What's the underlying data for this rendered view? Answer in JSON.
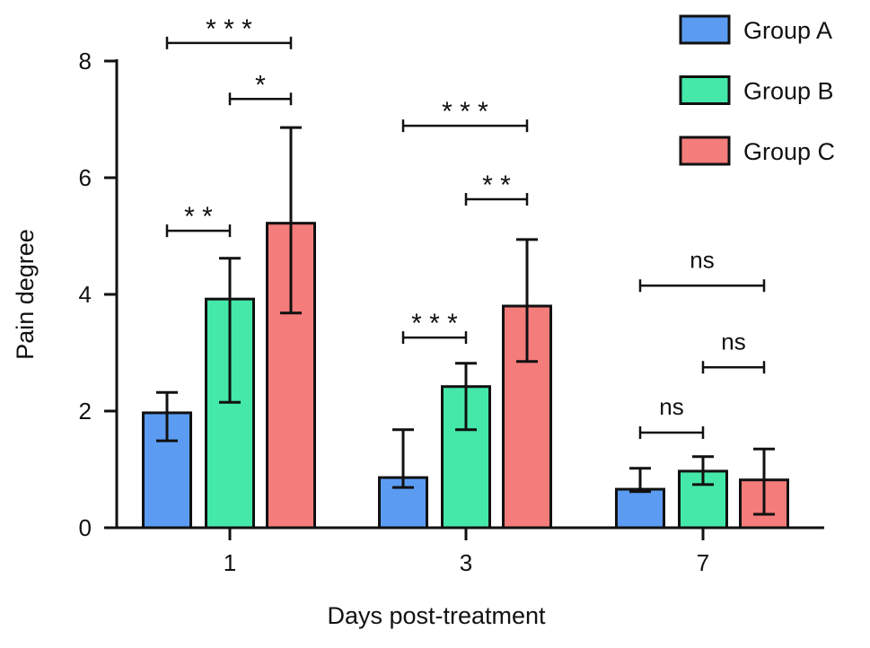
{
  "chart_data": {
    "type": "bar",
    "title": "",
    "xlabel": "Days post-treatment",
    "ylabel": "Pain degree",
    "ylim": [
      0,
      8
    ],
    "yticks": [
      0,
      2,
      4,
      6,
      8
    ],
    "categories": [
      "1",
      "3",
      "7"
    ],
    "legend_position": "top-right",
    "grid": false,
    "series": [
      {
        "name": "Group A",
        "color": "#5b9cf2",
        "values": [
          1.97,
          0.86,
          0.66
        ],
        "err_upper": [
          2.32,
          1.68,
          1.02
        ],
        "err_lower": [
          1.49,
          0.69,
          0.62
        ]
      },
      {
        "name": "Group B",
        "color": "#44e8a8",
        "values": [
          3.92,
          2.42,
          0.97
        ],
        "err_upper": [
          4.62,
          2.82,
          1.22
        ],
        "err_lower": [
          2.15,
          1.68,
          0.74
        ]
      },
      {
        "name": "Group C",
        "color": "#f47c7a",
        "values": [
          5.22,
          3.8,
          0.82
        ],
        "err_upper": [
          6.86,
          4.94,
          1.35
        ],
        "err_lower": [
          3.68,
          2.85,
          0.23
        ]
      }
    ],
    "significance": [
      {
        "category": 0,
        "from": 0,
        "to": 2,
        "y": 8.31,
        "label": "* * *"
      },
      {
        "category": 0,
        "from": 1,
        "to": 2,
        "y": 7.35,
        "label": "*"
      },
      {
        "category": 0,
        "from": 0,
        "to": 1,
        "y": 5.09,
        "label": "* *"
      },
      {
        "category": 1,
        "from": 0,
        "to": 2,
        "y": 6.89,
        "label": "* * *"
      },
      {
        "category": 1,
        "from": 1,
        "to": 2,
        "y": 5.63,
        "label": "* *"
      },
      {
        "category": 1,
        "from": 0,
        "to": 1,
        "y": 3.26,
        "label": "* * *"
      },
      {
        "category": 2,
        "from": 0,
        "to": 2,
        "y": 4.15,
        "label": "ns"
      },
      {
        "category": 2,
        "from": 1,
        "to": 2,
        "y": 2.75,
        "label": "ns"
      },
      {
        "category": 2,
        "from": 0,
        "to": 1,
        "y": 1.63,
        "label": "ns"
      }
    ]
  }
}
